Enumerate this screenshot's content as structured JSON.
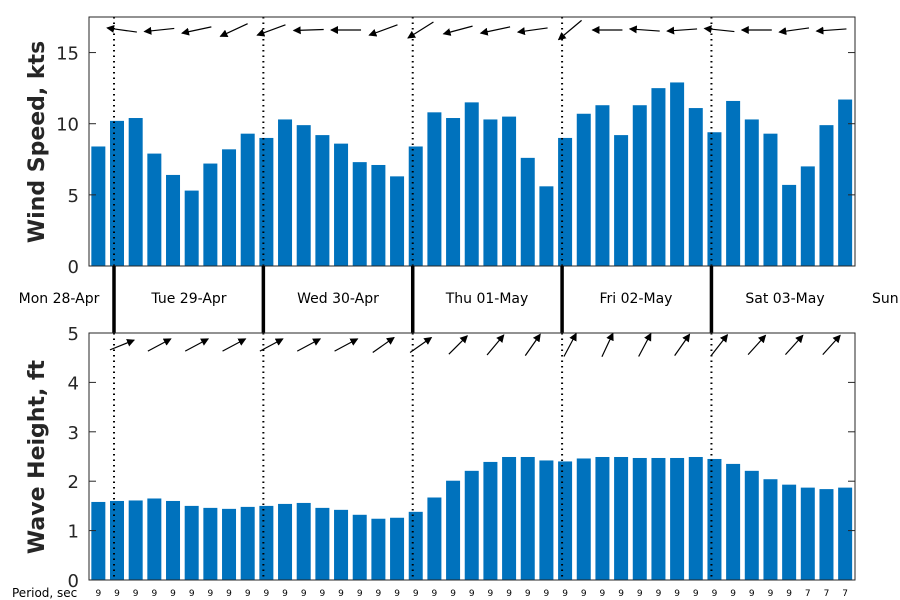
{
  "colors": {
    "bar": "#0072bd",
    "axis": "#262626",
    "arrow": "#000000",
    "divider": "#000000"
  },
  "chart_data": [
    {
      "type": "bar",
      "ylabel": "Wind Speed, kts",
      "ylim": [
        0,
        17.5
      ],
      "yticks": [
        0,
        5,
        10,
        15
      ],
      "ytick_labels": [
        "0",
        "5",
        "10",
        "15"
      ],
      "grid": false,
      "day_dividers": "dotted",
      "values": [
        8.4,
        10.2,
        10.4,
        7.9,
        6.4,
        5.3,
        7.2,
        8.2,
        9.3,
        9.0,
        10.3,
        9.9,
        9.2,
        8.6,
        7.3,
        7.1,
        6.3,
        8.4,
        10.8,
        10.4,
        11.5,
        10.3,
        10.5,
        7.6,
        5.6,
        9.0,
        10.7,
        11.3,
        9.2,
        11.3,
        12.5,
        12.9,
        11.1,
        9.4,
        11.6,
        10.3,
        9.3,
        5.7,
        7.0,
        9.9,
        11.7
      ],
      "direction_arrows": [
        {
          "bar": 1,
          "to_deg": 278
        },
        {
          "bar": 3,
          "to_deg": 264
        },
        {
          "bar": 5,
          "to_deg": 258
        },
        {
          "bar": 7,
          "to_deg": 245
        },
        {
          "bar": 9,
          "to_deg": 250
        },
        {
          "bar": 11,
          "to_deg": 268
        },
        {
          "bar": 13,
          "to_deg": 270
        },
        {
          "bar": 15,
          "to_deg": 250
        },
        {
          "bar": 17,
          "to_deg": 238
        },
        {
          "bar": 19,
          "to_deg": 255
        },
        {
          "bar": 21,
          "to_deg": 258
        },
        {
          "bar": 23,
          "to_deg": 262
        },
        {
          "bar": 25,
          "to_deg": 230
        },
        {
          "bar": 27,
          "to_deg": 270
        },
        {
          "bar": 29,
          "to_deg": 274
        },
        {
          "bar": 31,
          "to_deg": 266
        },
        {
          "bar": 33,
          "to_deg": 276
        },
        {
          "bar": 35,
          "to_deg": 270
        },
        {
          "bar": 37,
          "to_deg": 262
        },
        {
          "bar": 39,
          "to_deg": 266
        }
      ]
    },
    {
      "type": "bar",
      "ylabel": "Wave Height, ft",
      "ylim": [
        0,
        5
      ],
      "yticks": [
        0,
        1,
        2,
        3,
        4,
        5
      ],
      "ytick_labels": [
        "0",
        "1",
        "2",
        "3",
        "4",
        "5"
      ],
      "grid": false,
      "day_dividers": "dotted",
      "values": [
        1.58,
        1.6,
        1.61,
        1.65,
        1.6,
        1.5,
        1.46,
        1.44,
        1.48,
        1.5,
        1.54,
        1.56,
        1.46,
        1.42,
        1.32,
        1.24,
        1.26,
        1.38,
        1.67,
        2.01,
        2.21,
        2.39,
        2.49,
        2.49,
        2.42,
        2.4,
        2.46,
        2.49,
        2.49,
        2.47,
        2.47,
        2.47,
        2.49,
        2.45,
        2.35,
        2.21,
        2.04,
        1.93,
        1.87,
        1.84,
        1.87
      ],
      "direction_arrows": [
        {
          "bar": 1,
          "to_deg": 68
        },
        {
          "bar": 3,
          "to_deg": 62
        },
        {
          "bar": 5,
          "to_deg": 62
        },
        {
          "bar": 7,
          "to_deg": 62
        },
        {
          "bar": 9,
          "to_deg": 62
        },
        {
          "bar": 11,
          "to_deg": 62
        },
        {
          "bar": 13,
          "to_deg": 62
        },
        {
          "bar": 15,
          "to_deg": 55
        },
        {
          "bar": 17,
          "to_deg": 55
        },
        {
          "bar": 19,
          "to_deg": 45
        },
        {
          "bar": 21,
          "to_deg": 40
        },
        {
          "bar": 23,
          "to_deg": 35
        },
        {
          "bar": 25,
          "to_deg": 28
        },
        {
          "bar": 27,
          "to_deg": 25
        },
        {
          "bar": 29,
          "to_deg": 28
        },
        {
          "bar": 31,
          "to_deg": 35
        },
        {
          "bar": 33,
          "to_deg": 38
        },
        {
          "bar": 35,
          "to_deg": 42
        },
        {
          "bar": 37,
          "to_deg": 42
        },
        {
          "bar": 39,
          "to_deg": 42
        }
      ]
    }
  ],
  "day_labels": [
    "Mon 28-Apr",
    "Tue 29-Apr",
    "Wed 30-Apr",
    "Thu 01-May",
    "Fri 02-May",
    "Sat 03-May",
    "Sun"
  ],
  "period": {
    "label": "Period, sec",
    "values": [
      "9",
      "9",
      "9",
      "9",
      "9",
      "9",
      "9",
      "9",
      "9",
      "9",
      "9",
      "9",
      "9",
      "9",
      "9",
      "9",
      "9",
      "9",
      "9",
      "9",
      "9",
      "9",
      "9",
      "9",
      "9",
      "9",
      "9",
      "9",
      "9",
      "9",
      "9",
      "9",
      "9",
      "9",
      "9",
      "9",
      "9",
      "9",
      "7",
      "7",
      "7"
    ]
  }
}
